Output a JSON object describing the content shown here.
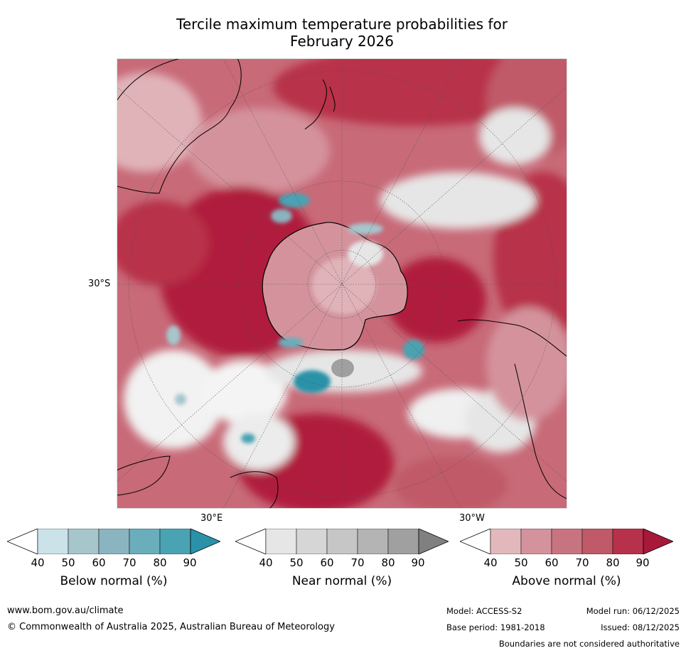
{
  "title_line1": "Tercile maximum temperature probabilities for",
  "title_line2": "February 2026",
  "map": {
    "lat_label": "30°S",
    "lon_label_east": "30°E",
    "lon_label_west": "30°W"
  },
  "legends": [
    {
      "label": "Below normal (%)",
      "ticks": [
        "40",
        "50",
        "60",
        "70",
        "80",
        "90"
      ],
      "colors": [
        "#ffffff",
        "#cae2e8",
        "#a6c6cc",
        "#8ab4c0",
        "#6aaebb",
        "#4aa3b3",
        "#2a92a8"
      ]
    },
    {
      "label": "Near normal (%)",
      "ticks": [
        "40",
        "50",
        "60",
        "70",
        "80",
        "90"
      ],
      "colors": [
        "#ffffff",
        "#e6e6e6",
        "#d6d6d6",
        "#c6c6c6",
        "#b4b4b4",
        "#a0a0a0",
        "#808080"
      ]
    },
    {
      "label": "Above normal (%)",
      "ticks": [
        "40",
        "50",
        "60",
        "70",
        "80",
        "90"
      ],
      "colors": [
        "#ffffff",
        "#e2b8bd",
        "#d4939c",
        "#c87480",
        "#c05a68",
        "#b8314a",
        "#a8183a"
      ]
    }
  ],
  "footer": {
    "website": "www.bom.gov.au/climate",
    "copyright": "© Commonwealth of Australia 2025, Australian Bureau of Meteorology",
    "model": "Model: ACCESS-S2",
    "base_period": "Base period: 1981-2018",
    "model_run": "Model run: 06/12/2025",
    "issued": "Issued: 08/12/2025",
    "disclaimer": "Boundaries are not considered authoritative"
  }
}
